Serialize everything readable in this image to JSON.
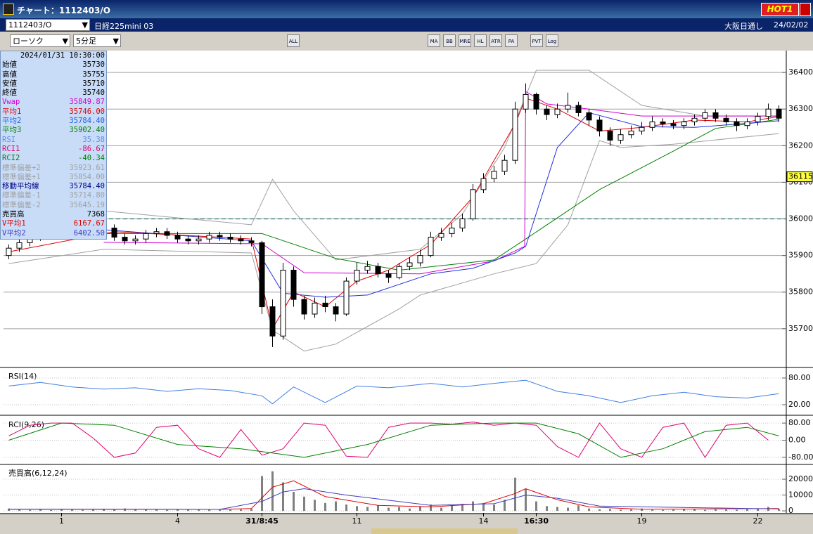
{
  "window": {
    "title": "チャート：1112403/O",
    "hot": "HOT1",
    "symbol": "1112403/O",
    "instrument": "日経225mini 03",
    "market": "大阪日通し",
    "date": "24/02/02"
  },
  "toolbar": {
    "chart_type": "ローソク",
    "interval": "5分足",
    "buttons": [
      "ALL",
      "MA",
      "BB",
      "MRE",
      "HL",
      "ATR",
      "PA RA",
      "PVT",
      "Log"
    ]
  },
  "info_panel": {
    "timestamp": "2024/01/31  10:30:00",
    "rows": [
      [
        "始値",
        "35730",
        "#000000"
      ],
      [
        "高値",
        "35755",
        "#000000"
      ],
      [
        "安値",
        "35710",
        "#000000"
      ],
      [
        "終値",
        "35740",
        "#000000"
      ],
      [
        "Vwap",
        "35849.87",
        "#d000d0"
      ],
      [
        "平均1",
        "35746.00",
        "#e00000"
      ],
      [
        "平均2",
        "35784.40",
        "#2060e0"
      ],
      [
        "平均3",
        "35902.40",
        "#008000"
      ],
      [
        "RSI",
        "35.38",
        "#6090e0"
      ],
      [
        "RCI1",
        "-86.67",
        "#e00070"
      ],
      [
        "RCI2",
        "-40.34",
        "#008000"
      ],
      [
        "標準偏差+2",
        "35923.61",
        "#a0a0a0"
      ],
      [
        "標準偏差+1",
        "35854.00",
        "#a0a0a0"
      ],
      [
        "移動平均線",
        "35784.40",
        "#000080"
      ],
      [
        "標準偏差-1",
        "35714.80",
        "#a0a0a0"
      ],
      [
        "標準偏差-2",
        "35645.19",
        "#a0a0a0"
      ],
      [
        "売買高",
        "7368",
        "#000000"
      ],
      [
        "V平均1",
        "6167.67",
        "#e00000"
      ],
      [
        "V平均2",
        "6402.50",
        "#4040c0"
      ]
    ]
  },
  "chart_data": [
    {
      "type": "candlestick",
      "xlim": [
        -0.5,
        73.7
      ],
      "ylim": [
        35596,
        36454
      ],
      "yticks": [
        36400,
        36300,
        36200,
        36100,
        36000,
        35900,
        35800,
        35700
      ],
      "reference_line": 36000,
      "reference_color": "#207070",
      "current_price": 36115,
      "candles": [
        [
          35900,
          35930,
          35890,
          35920
        ],
        [
          35920,
          35945,
          35910,
          35935
        ],
        [
          35935,
          35960,
          35925,
          35950
        ],
        [
          35950,
          35970,
          35940,
          35960
        ],
        [
          35960,
          35975,
          35950,
          35965
        ],
        [
          35965,
          35980,
          35955,
          35970
        ],
        [
          35970,
          35985,
          35960,
          35975
        ],
        [
          35975,
          35990,
          35965,
          35980
        ],
        [
          35980,
          35995,
          35970,
          35985
        ],
        [
          35985,
          35995,
          35965,
          35975
        ],
        [
          35975,
          35985,
          35940,
          35950
        ],
        [
          35950,
          35960,
          35930,
          35940
        ],
        [
          35940,
          35955,
          35930,
          35945
        ],
        [
          35945,
          35970,
          35935,
          35960
        ],
        [
          35960,
          35975,
          35950,
          35965
        ],
        [
          35965,
          35975,
          35945,
          35955
        ],
        [
          35955,
          35965,
          35935,
          35945
        ],
        [
          35945,
          35955,
          35930,
          35940
        ],
        [
          35940,
          35955,
          35930,
          35945
        ],
        [
          35945,
          35965,
          35935,
          35955
        ],
        [
          35955,
          35965,
          35940,
          35950
        ],
        [
          35950,
          35960,
          35935,
          35945
        ],
        [
          35945,
          35955,
          35930,
          35940
        ],
        [
          35940,
          35950,
          35925,
          35935
        ],
        [
          35935,
          35940,
          35740,
          35760
        ],
        [
          35760,
          35780,
          35650,
          35680
        ],
        [
          35680,
          35880,
          35670,
          35860
        ],
        [
          35860,
          35870,
          35760,
          35780
        ],
        [
          35780,
          35790,
          35725,
          35740
        ],
        [
          35740,
          35785,
          35730,
          35770
        ],
        [
          35770,
          35790,
          35745,
          35760
        ],
        [
          35760,
          35770,
          35720,
          35740
        ],
        [
          35740,
          35840,
          35735,
          35830
        ],
        [
          35830,
          35880,
          35820,
          35860
        ],
        [
          35860,
          35885,
          35850,
          35870
        ],
        [
          35870,
          35880,
          35840,
          35850
        ],
        [
          35850,
          35860,
          35825,
          35840
        ],
        [
          35840,
          35880,
          35835,
          35870
        ],
        [
          35870,
          35895,
          35860,
          35880
        ],
        [
          35880,
          35915,
          35870,
          35900
        ],
        [
          35900,
          35965,
          35895,
          35950
        ],
        [
          35950,
          35975,
          35940,
          35960
        ],
        [
          35960,
          35990,
          35950,
          35975
        ],
        [
          35975,
          36015,
          35965,
          36000
        ],
        [
          36000,
          36095,
          35995,
          36080
        ],
        [
          36080,
          36125,
          36070,
          36110
        ],
        [
          36110,
          36145,
          36100,
          36130
        ],
        [
          36130,
          36175,
          36120,
          36160
        ],
        [
          36160,
          36320,
          36150,
          36300
        ],
        [
          36300,
          36370,
          36290,
          36340
        ],
        [
          36340,
          36345,
          36285,
          36300
        ],
        [
          36300,
          36310,
          36270,
          36285
        ],
        [
          36285,
          36315,
          36275,
          36300
        ],
        [
          36300,
          36345,
          36290,
          36310
        ],
        [
          36310,
          36320,
          36280,
          36290
        ],
        [
          36290,
          36300,
          36255,
          36270
        ],
        [
          36270,
          36280,
          36225,
          36240
        ],
        [
          36240,
          36250,
          36200,
          36215
        ],
        [
          36215,
          36245,
          36205,
          36230
        ],
        [
          36230,
          36255,
          36220,
          36240
        ],
        [
          36240,
          36265,
          36230,
          36250
        ],
        [
          36250,
          36280,
          36240,
          36265
        ],
        [
          36265,
          36275,
          36250,
          36260
        ],
        [
          36260,
          36270,
          36245,
          36255
        ],
        [
          36255,
          36275,
          36245,
          36265
        ],
        [
          36265,
          36285,
          36255,
          36275
        ],
        [
          36275,
          36300,
          36265,
          36290
        ],
        [
          36290,
          36300,
          36265,
          36275
        ],
        [
          36275,
          36285,
          36255,
          36265
        ],
        [
          36265,
          36275,
          36240,
          36255
        ],
        [
          36255,
          36275,
          36245,
          36265
        ],
        [
          36265,
          36290,
          36255,
          36280
        ],
        [
          36280,
          36315,
          36270,
          36300
        ],
        [
          36300,
          36310,
          36265,
          36275
        ]
      ],
      "series": [
        {
          "color": "#a0a0a0",
          "x": [
            0,
            9,
            23,
            25,
            27,
            31,
            39,
            43,
            47,
            50,
            55,
            60,
            66,
            73
          ],
          "values": [
            36032,
            36022,
            35984,
            36108,
            36022,
            35888,
            35917,
            36013,
            36195,
            36406,
            36406,
            36310,
            36281,
            36281
          ]
        },
        {
          "color": "#a0a0a0",
          "x": [
            0,
            9,
            23,
            25,
            28,
            31,
            37,
            39,
            46,
            50,
            53,
            56,
            58,
            63,
            73
          ],
          "values": [
            35878,
            35917,
            35907,
            35696,
            35639,
            35658,
            35754,
            35792,
            35850,
            35878,
            35984,
            36214,
            36195,
            36204,
            36233
          ]
        },
        {
          "color": "#008000",
          "x": [
            9,
            24,
            31,
            37,
            46,
            49,
            56,
            63,
            67,
            73
          ],
          "values": [
            35960,
            35960,
            35892,
            35860,
            35888,
            35945,
            36080,
            36185,
            36247,
            36272
          ]
        },
        {
          "color": "#d000d0",
          "x": [
            9,
            24,
            28,
            39,
            46,
            48.9,
            49,
            51,
            55,
            60,
            73
          ],
          "values": [
            35936,
            35932,
            35853,
            35850,
            35885,
            35925,
            36348,
            36314,
            36300,
            36281,
            36281
          ]
        },
        {
          "color": "#2030e0",
          "x": [
            0,
            23,
            26,
            30,
            34,
            40,
            44,
            48,
            49,
            52,
            55,
            60,
            65,
            73
          ],
          "values": [
            35990,
            35940,
            35797,
            35786,
            35792,
            35850,
            35865,
            35907,
            35925,
            36195,
            36290,
            36252,
            36250,
            36268
          ]
        },
        {
          "color": "#e00000",
          "x": [
            0,
            10,
            20,
            23,
            25,
            27,
            30,
            33,
            36,
            40,
            44,
            48,
            49,
            52,
            56,
            60,
            65,
            70,
            73
          ],
          "values": [
            35910,
            35965,
            35950,
            35945,
            35700,
            35800,
            35760,
            35830,
            35860,
            35930,
            36060,
            36260,
            36330,
            36300,
            36240,
            36250,
            36270,
            36265,
            36280
          ]
        }
      ]
    },
    {
      "type": "line",
      "title": "RSI(14)",
      "xlim": [
        -0.5,
        73.7
      ],
      "ylim": [
        -2,
        102
      ],
      "yticks": [
        {
          "value": 80,
          "label": "80.00"
        },
        {
          "value": 20,
          "label": "20.00"
        }
      ],
      "series": [
        {
          "color": "#4080e0",
          "x": [
            0,
            3,
            6,
            9,
            12,
            15,
            18,
            21,
            24,
            25,
            27,
            30,
            33,
            36,
            40,
            43,
            46,
            49,
            52,
            55,
            58,
            61,
            64,
            67,
            70,
            73
          ],
          "values": [
            62,
            70,
            60,
            55,
            58,
            50,
            56,
            52,
            40,
            22,
            60,
            25,
            62,
            58,
            68,
            60,
            68,
            75,
            50,
            40,
            25,
            40,
            48,
            38,
            35,
            45
          ]
        }
      ]
    },
    {
      "type": "line",
      "title": "RCI(9,26)",
      "xlim": [
        -0.5,
        73.7
      ],
      "ylim": [
        -110,
        110
      ],
      "yticks": [
        {
          "value": 80,
          "label": "80.00"
        },
        {
          "value": 0,
          "label": "0.00"
        },
        {
          "value": -80,
          "label": "-80.00"
        }
      ],
      "series": [
        {
          "color": "#e00070",
          "x": [
            0,
            2,
            4,
            6,
            8,
            10,
            12,
            14,
            16,
            18,
            20,
            22,
            24,
            26,
            28,
            30,
            32,
            34,
            36,
            38,
            40,
            42,
            44,
            46,
            48,
            50,
            52,
            54,
            56,
            58,
            60,
            62,
            64,
            66,
            68,
            70,
            72
          ],
          "values": [
            20,
            70,
            80,
            80,
            10,
            -80,
            -60,
            60,
            70,
            -40,
            -80,
            50,
            -70,
            -40,
            80,
            70,
            -75,
            -80,
            60,
            80,
            80,
            75,
            85,
            70,
            80,
            70,
            -30,
            -80,
            80,
            -40,
            -80,
            60,
            80,
            -80,
            70,
            80,
            0
          ]
        },
        {
          "color": "#008000",
          "x": [
            0,
            5,
            10,
            16,
            22,
            28,
            34,
            40,
            46,
            50,
            54,
            58,
            62,
            66,
            70,
            73
          ],
          "values": [
            0,
            80,
            70,
            -20,
            -40,
            -80,
            -20,
            70,
            80,
            80,
            30,
            -80,
            -40,
            40,
            60,
            20
          ]
        }
      ]
    },
    {
      "type": "bar",
      "title": "売買高(6,12,24)",
      "xlim": [
        -0.5,
        73.7
      ],
      "ylim": [
        -1300,
        28900
      ],
      "yticks": [
        20000,
        10000,
        0
      ],
      "color": "#808080",
      "xticks": [
        {
          "value": 5,
          "label": "1"
        },
        {
          "value": 16,
          "label": "4"
        },
        {
          "value": 24,
          "label": "31/8:45"
        },
        {
          "value": 33,
          "label": "11"
        },
        {
          "value": 45,
          "label": "14"
        },
        {
          "value": 50,
          "label": "16:30"
        },
        {
          "value": 60,
          "label": "19"
        },
        {
          "value": 71,
          "label": "22"
        }
      ],
      "values": [
        1500,
        800,
        600,
        1200,
        500,
        900,
        700,
        600,
        1100,
        1300,
        1000,
        1500,
        800,
        900,
        700,
        600,
        1200,
        900,
        1000,
        1100,
        800,
        700,
        900,
        1200,
        22000,
        25000,
        18000,
        12000,
        9000,
        7000,
        5000,
        6000,
        4000,
        3000,
        2500,
        3500,
        2000,
        2500,
        1500,
        3000,
        4000,
        2000,
        3500,
        4500,
        6000,
        5000,
        4000,
        7000,
        21000,
        14000,
        6000,
        3000,
        2500,
        2000,
        3500,
        1500,
        1000,
        1200,
        800,
        900,
        1500,
        700,
        600,
        800,
        1000,
        1200,
        600,
        900,
        800,
        700,
        1000,
        1500,
        2500,
        1200
      ],
      "series": [
        {
          "color": "#e00000",
          "x": [
            0,
            10,
            20,
            23,
            25,
            27,
            30,
            35,
            40,
            45,
            48,
            49,
            52,
            55,
            60,
            73
          ],
          "values": [
            1000,
            1000,
            900,
            1500,
            15000,
            19000,
            9000,
            3500,
            2500,
            4500,
            11000,
            14000,
            7000,
            2500,
            1000,
            1500
          ]
        },
        {
          "color": "#4040c0",
          "x": [
            0,
            20,
            24,
            26,
            28,
            32,
            40,
            46,
            49,
            52,
            56,
            73
          ],
          "values": [
            1000,
            900,
            6000,
            12000,
            14000,
            10000,
            3500,
            4500,
            10000,
            8000,
            3000,
            1200
          ]
        }
      ]
    }
  ]
}
